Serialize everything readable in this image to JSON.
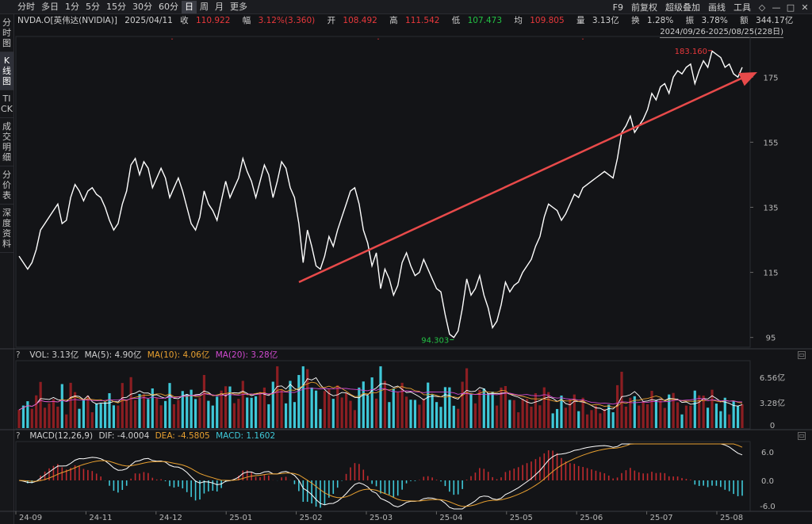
{
  "toolbar": {
    "periods": [
      "分时",
      "多日",
      "1分",
      "5分",
      "15分",
      "30分",
      "60分",
      "日",
      "周",
      "月",
      "更多"
    ],
    "active_period": "日",
    "right_items": [
      "F9",
      "前复权",
      "超级叠加",
      "画线",
      "工具"
    ],
    "win_controls": [
      "◇",
      "—",
      "□",
      "✕"
    ]
  },
  "sidebar": [
    "分时图",
    "K线图",
    "TICK",
    "成交明细",
    "分价表",
    "深度资料"
  ],
  "sidebar_active": 1,
  "info": {
    "name": "NVDA.O[英伟达(NVIDIA)]",
    "date": "2025/04/11",
    "close_label": "收",
    "close": "110.922",
    "chg_label": "幅",
    "chg": "3.12%(3.360)",
    "open_label": "开",
    "open": "108.492",
    "high_label": "高",
    "high": "111.542",
    "low_label": "低",
    "low": "107.473",
    "avg_label": "均",
    "avg": "109.805",
    "vol_label": "量",
    "vol": "3.13亿",
    "turn_label": "换",
    "turn": "1.28%",
    "amp_label": "振",
    "amp": "3.78%",
    "amt_label": "额",
    "amt": "344.17亿"
  },
  "range_label": "2024/09/26-2025/08/25(228日)",
  "price_axis": [
    "175",
    "155",
    "135",
    "115",
    "95"
  ],
  "max_label": "183.160",
  "min_label": "94.303",
  "volume": {
    "q": "?",
    "vol": "VOL: 3.13亿",
    "ma5": "MA(5): 4.90亿",
    "ma10": "MA(10): 4.06亿",
    "ma20": "MA(20): 3.28亿",
    "axis": [
      "6.56亿",
      "3.28亿",
      "0"
    ]
  },
  "macd": {
    "q": "?",
    "name": "MACD(12,26,9)",
    "dif": "DIF: -4.0004",
    "dea": "DEA: -4.5805",
    "val": "MACD: 1.1602",
    "axis": [
      "6.0",
      "0.0",
      "-6.0"
    ]
  },
  "dates": [
    "24-09",
    "24-11",
    "24-12",
    "25-01",
    "25-02",
    "25-03",
    "25-04",
    "25-05",
    "25-06",
    "25-07",
    "25-08"
  ],
  "colors": {
    "up": "#e8383b",
    "down": "#3fc8d8",
    "line": "#ffffff",
    "arrow": "#e84a4a",
    "ma10": "#e8a030",
    "ma20": "#d04ad0"
  },
  "chart_data": {
    "type": "line",
    "x_range": [
      "2024/09/26",
      "2025/08/25"
    ],
    "y_ticks": [
      95,
      115,
      135,
      155,
      175
    ],
    "ylim": [
      92,
      187
    ],
    "max": 183.16,
    "min": 94.303,
    "close_series": [
      120,
      118,
      116,
      118,
      122,
      128,
      130,
      132,
      134,
      136,
      130,
      131,
      138,
      142,
      140,
      137,
      140,
      141,
      139,
      138,
      135,
      131,
      128,
      130,
      136,
      140,
      148,
      150,
      145,
      149,
      147,
      141,
      144,
      147,
      144,
      138,
      141,
      144,
      140,
      135,
      130,
      128,
      132,
      140,
      136,
      134,
      131,
      137,
      143,
      138,
      141,
      144,
      150,
      146,
      143,
      138,
      143,
      148,
      145,
      138,
      143,
      149,
      147,
      141,
      138,
      130,
      118,
      128,
      123,
      117,
      116,
      120,
      126,
      123,
      128,
      132,
      136,
      140,
      141,
      136,
      128,
      124,
      117,
      121,
      110,
      116,
      113,
      108,
      111,
      118,
      121,
      117,
      114,
      115,
      119,
      116,
      113,
      110,
      109,
      102,
      96,
      95,
      97,
      104,
      113,
      108,
      110,
      114,
      108,
      104,
      98,
      100,
      105,
      112,
      109,
      111,
      112,
      115,
      117,
      119,
      123,
      126,
      132,
      136,
      135,
      134,
      131,
      133,
      136,
      139,
      138,
      141,
      142,
      143,
      144,
      145,
      146,
      145,
      144,
      150,
      158,
      160,
      163,
      158,
      160,
      162,
      165,
      170,
      168,
      172,
      173,
      170,
      175,
      177,
      176,
      178,
      179,
      173,
      177,
      180,
      178,
      183,
      182,
      181,
      178,
      179,
      176,
      175,
      178
    ],
    "trend_arrow": {
      "from_value": 112,
      "to_value": 177
    }
  }
}
